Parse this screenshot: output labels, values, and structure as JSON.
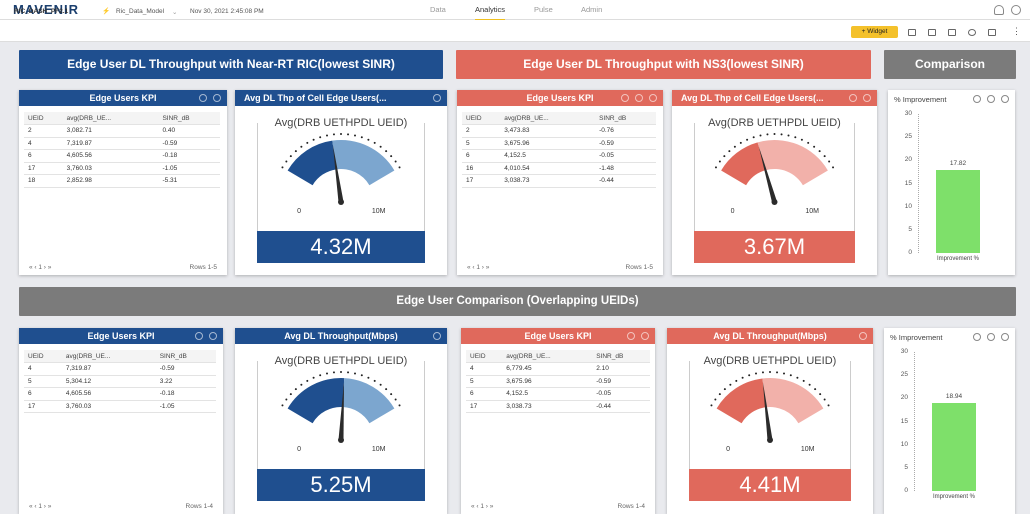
{
  "app": {
    "logo": "MAVENIR"
  },
  "nav": {
    "tabs": [
      "Data",
      "Analytics",
      "Pulse",
      "Admin"
    ]
  },
  "subbar": {
    "dashboard": "RIC_DASH_PF2.1",
    "model": "Ric_Data_Model",
    "timestamp": "Nov 30, 2021 2:45:08 PM",
    "widget_button": "Widget"
  },
  "sections": {
    "ric_banner": "Edge User DL Throughput with Near-RT RIC(lowest SINR)",
    "ns3_banner": "Edge User DL Throughput with NS3(lowest SINR)",
    "comparison_banner": "Comparison",
    "overlap_banner": "Edge User Comparison (Overlapping UEIDs)"
  },
  "kpi_tables": [
    {
      "title": "Edge Users KPI",
      "columns": [
        "UEID",
        "avg(DRB_UE...",
        "SINR_dB"
      ],
      "rows": [
        [
          "2",
          "3,082.71",
          "0.40"
        ],
        [
          "4",
          "7,319.87",
          "-0.59"
        ],
        [
          "6",
          "4,605.56",
          "-0.18"
        ],
        [
          "17",
          "3,760.03",
          "-1.05"
        ],
        [
          "18",
          "2,852.98",
          "-5.31"
        ]
      ],
      "pager": "« ‹ 1 › »",
      "rows_label": "Rows 1-5"
    },
    {
      "title": "Edge Users KPI",
      "columns": [
        "UEID",
        "avg(DRB_UE...",
        "SINR_dB"
      ],
      "rows": [
        [
          "2",
          "3,473.83",
          "-0.76"
        ],
        [
          "5",
          "3,675.96",
          "-0.59"
        ],
        [
          "6",
          "4,152.5",
          "-0.05"
        ],
        [
          "16",
          "4,010.54",
          "-1.48"
        ],
        [
          "17",
          "3,038.73",
          "-0.44"
        ]
      ],
      "pager": "« ‹ 1 › »",
      "rows_label": "Rows 1-5"
    },
    {
      "title": "Edge Users KPI",
      "columns": [
        "UEID",
        "avg(DRB_UE...",
        "SINR_dB"
      ],
      "rows": [
        [
          "4",
          "7,319.87",
          "-0.59"
        ],
        [
          "5",
          "5,304.12",
          "3.22"
        ],
        [
          "6",
          "4,605.56",
          "-0.18"
        ],
        [
          "17",
          "3,760.03",
          "-1.05"
        ]
      ],
      "pager": "« ‹ 1 › »",
      "rows_label": "Rows 1-4"
    },
    {
      "title": "Edge Users KPI",
      "columns": [
        "UEID",
        "avg(DRB_UE...",
        "SINR_dB"
      ],
      "rows": [
        [
          "4",
          "6,779.45",
          "2.10"
        ],
        [
          "5",
          "3,675.96",
          "-0.59"
        ],
        [
          "6",
          "4,152.5",
          "-0.05"
        ],
        [
          "17",
          "3,038.73",
          "-0.44"
        ]
      ],
      "pager": "« ‹ 1 › »",
      "rows_label": "Rows 1-4"
    }
  ],
  "gauges": [
    {
      "title": "Avg DL Thp of Cell Edge Users(...",
      "subtitle": "Avg(DRB UETHPDL UEID)",
      "min": "0",
      "max": "10M",
      "value_label": "4.32M",
      "fraction": 0.432
    },
    {
      "title": "Avg DL Thp of Cell Edge Users(...",
      "subtitle": "Avg(DRB UETHPDL UEID)",
      "min": "0",
      "max": "10M",
      "value_label": "3.67M",
      "fraction": 0.367
    },
    {
      "title": "Avg DL Throughput(Mbps)",
      "subtitle": "Avg(DRB UETHPDL UEID)",
      "min": "0",
      "max": "10M",
      "value_label": "5.25M",
      "fraction": 0.525
    },
    {
      "title": "Avg DL Throughput(Mbps)",
      "subtitle": "Avg(DRB UETHPDL UEID)",
      "min": "0",
      "max": "10M",
      "value_label": "4.41M",
      "fraction": 0.441
    }
  ],
  "colors": {
    "ric_blue": "#1f4f8f",
    "ric_light": "#7ca6cf",
    "ns3_red": "#e0695c",
    "ns3_light": "#f2b1aa",
    "bar_green": "#7ee06a"
  },
  "chart_data": [
    {
      "type": "bar",
      "title": "% Improvement",
      "categories": [
        "Improvement %"
      ],
      "values": [
        17.82
      ],
      "value_labels": [
        "17.82"
      ],
      "yticks": [
        "30",
        "25",
        "20",
        "15",
        "10",
        "5",
        "0"
      ],
      "ylim": [
        0,
        30
      ]
    },
    {
      "type": "bar",
      "title": "% Improvement",
      "categories": [
        "Improvement %"
      ],
      "values": [
        18.94
      ],
      "value_labels": [
        "18.94"
      ],
      "yticks": [
        "30",
        "25",
        "20",
        "15",
        "10",
        "5",
        "0"
      ],
      "ylim": [
        0,
        30
      ]
    }
  ]
}
